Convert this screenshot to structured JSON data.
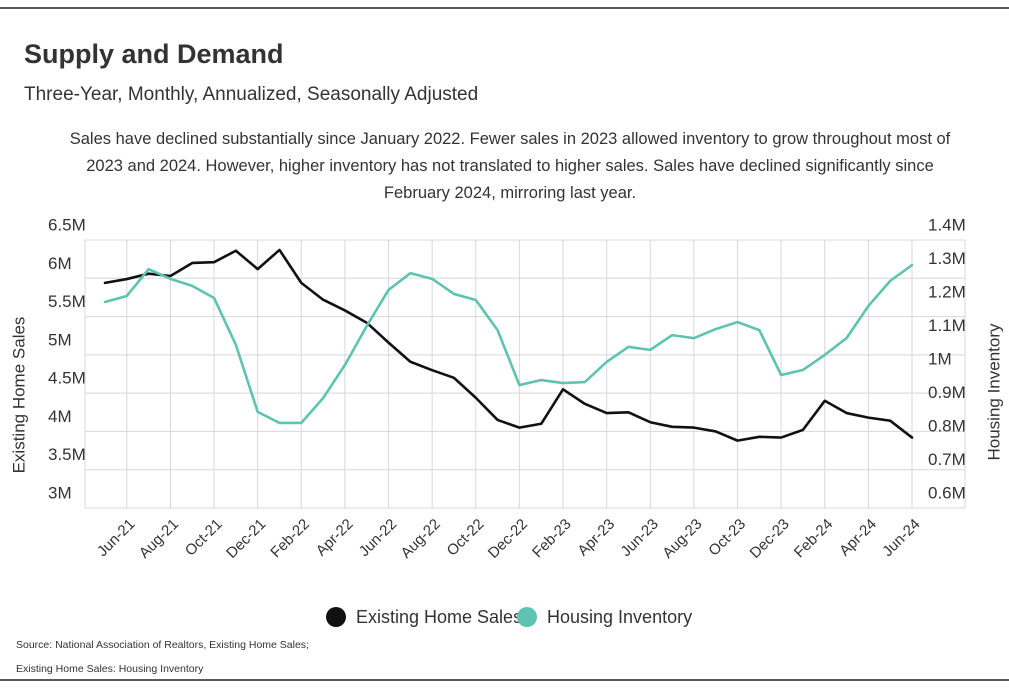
{
  "chart_data": {
    "type": "line",
    "title": "Supply and Demand",
    "subtitle": "Three-Year, Monthly, Annualized, Seasonally Adjusted",
    "description": "Sales have declined substantially since January 2022. Fewer sales in 2023 allowed inventory to grow throughout most of 2023 and 2024. However, higher inventory has not translated to higher sales. Sales have declined significantly since February 2024, mirroring last year.",
    "ylabel": "Existing Home Sales",
    "y2label": "Housing Inventory",
    "source": [
      "Source:  National Association of Realtors, Existing Home Sales;",
      "Existing Home Sales: Housing Inventory"
    ],
    "categories": [
      null,
      "Jun-21",
      null,
      "Aug-21",
      null,
      "Oct-21",
      null,
      "Dec-21",
      null,
      "Feb-22",
      null,
      "Apr-22",
      null,
      "Jun-22",
      null,
      "Aug-22",
      null,
      "Oct-22",
      null,
      "Dec-22",
      null,
      "Feb-23",
      null,
      "Apr-23",
      null,
      "Jun-23",
      null,
      "Aug-23",
      null,
      "Oct-23",
      null,
      "Dec-23",
      null,
      "Feb-24",
      null,
      "Apr-24",
      null,
      "Jun-24"
    ],
    "series": [
      {
        "name": "Existing Home Sales",
        "color": "#111111",
        "values": [
          5940000,
          5990000,
          6060000,
          6030000,
          6200000,
          6210000,
          6360000,
          6120000,
          6370000,
          5940000,
          5720000,
          5580000,
          5420000,
          5160000,
          4910000,
          4800000,
          4700000,
          4440000,
          4150000,
          4050000,
          4100000,
          4550000,
          4360000,
          4240000,
          4250000,
          4120000,
          4060000,
          4050000,
          4000000,
          3880000,
          3930000,
          3920000,
          4020000,
          4400000,
          4240000,
          4180000,
          4140000,
          3920000
        ]
      },
      {
        "name": "Housing Inventory",
        "color": "#5cc4b0",
        "axis": "y2",
        "values": [
          1215000,
          1233000,
          1313000,
          1284000,
          1263000,
          1227000,
          1087000,
          887000,
          854000,
          854000,
          928000,
          1027000,
          1143000,
          1251000,
          1301000,
          1284000,
          1239000,
          1221000,
          1131000,
          967000,
          982000,
          973000,
          976000,
          1036000,
          1081000,
          1072000,
          1116000,
          1107000,
          1134000,
          1155000,
          1131000,
          997000,
          1012000,
          1057000,
          1107000,
          1203000,
          1278000,
          1325000
        ]
      }
    ],
    "ylim": [
      3000000,
      6500000
    ],
    "yticks": [
      {
        "value": 3000000,
        "label": "3M"
      },
      {
        "value": 3500000,
        "label": "3.5M"
      },
      {
        "value": 4000000,
        "label": "4M"
      },
      {
        "value": 4500000,
        "label": "4.5M"
      },
      {
        "value": 5000000,
        "label": "5M"
      },
      {
        "value": 5500000,
        "label": "5.5M"
      },
      {
        "value": 6000000,
        "label": "6M"
      },
      {
        "value": 6500000,
        "label": "6.5M"
      }
    ],
    "y2lim": [
      600000,
      1400000
    ],
    "y2ticks": [
      {
        "value": 600000,
        "label": "0.6M"
      },
      {
        "value": 700000,
        "label": "0.7M"
      },
      {
        "value": 800000,
        "label": "0.8M"
      },
      {
        "value": 900000,
        "label": "0.9M"
      },
      {
        "value": 1000000,
        "label": "1M"
      },
      {
        "value": 1100000,
        "label": "1.1M"
      },
      {
        "value": 1200000,
        "label": "1.2M"
      },
      {
        "value": 1300000,
        "label": "1.3M"
      },
      {
        "value": 1400000,
        "label": "1.4M"
      }
    ],
    "grid": true,
    "legend": "bottom"
  }
}
